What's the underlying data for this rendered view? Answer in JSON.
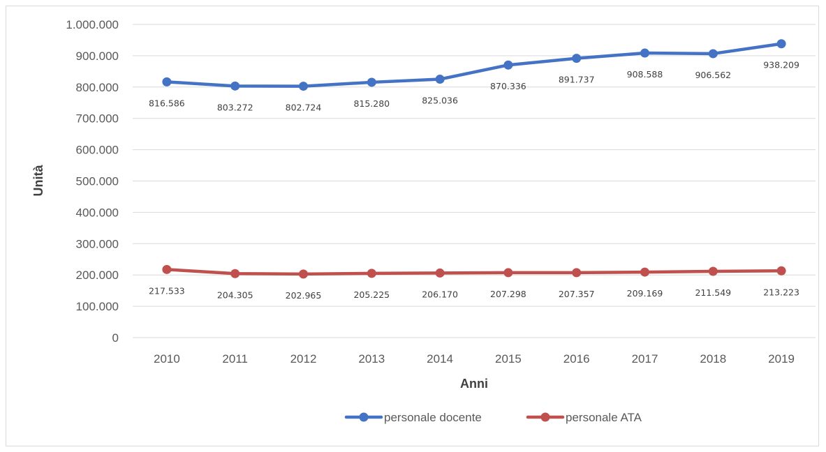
{
  "chart_data": {
    "type": "line",
    "title": "",
    "xlabel": "Anni",
    "ylabel": "Unità",
    "categories": [
      "2010",
      "2011",
      "2012",
      "2013",
      "2014",
      "2015",
      "2016",
      "2017",
      "2018",
      "2019"
    ],
    "ylim": [
      0,
      1000000
    ],
    "yticks": [
      0,
      100000,
      200000,
      300000,
      400000,
      500000,
      600000,
      700000,
      800000,
      900000,
      1000000
    ],
    "ytick_labels": [
      "0",
      "100.000",
      "200.000",
      "300.000",
      "400.000",
      "500.000",
      "600.000",
      "700.000",
      "800.000",
      "900.000",
      "1.000.000"
    ],
    "grid": true,
    "legend_position": "bottom",
    "series": [
      {
        "name": "personale docente",
        "color": "#4472c4",
        "values": [
          816586,
          803272,
          802724,
          815280,
          825036,
          870336,
          891737,
          908588,
          906562,
          938209
        ],
        "labels": [
          "816.586",
          "803.272",
          "802.724",
          "815.280",
          "825.036",
          "870.336",
          "891.737",
          "908.588",
          "906.562",
          "938.209"
        ]
      },
      {
        "name": "personale ATA",
        "color": "#c0504d",
        "values": [
          217533,
          204305,
          202965,
          205225,
          206170,
          207298,
          207357,
          209169,
          211549,
          213223
        ],
        "labels": [
          "217.533",
          "204.305",
          "202.965",
          "205.225",
          "206.170",
          "207.298",
          "207.357",
          "209.169",
          "211.549",
          "213.223"
        ]
      }
    ]
  }
}
